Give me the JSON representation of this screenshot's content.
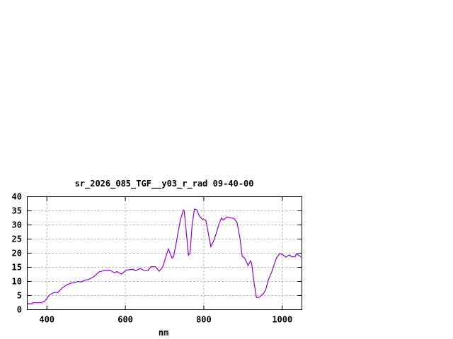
{
  "chart_data": {
    "type": "line",
    "title": "sr_2026_085_TGF__y03_r_rad 09-40-00",
    "xlabel": "nm",
    "ylabel": "",
    "xlim": [
      350,
      1050
    ],
    "ylim": [
      0,
      40
    ],
    "xticks": [
      400,
      600,
      800,
      1000
    ],
    "yticks": [
      0,
      5,
      10,
      15,
      20,
      25,
      30,
      35,
      40
    ],
    "grid": true,
    "line_color": "#9400d3",
    "series": [
      {
        "x": [
          350,
          362,
          365,
          386,
          395,
          401,
          407,
          419,
          428,
          440,
          452,
          461,
          473,
          479,
          488,
          494,
          506,
          521,
          533,
          548,
          560,
          572,
          579,
          590,
          602,
          620,
          626,
          638,
          649,
          658,
          665,
          677,
          686,
          695,
          707,
          710,
          719,
          723,
          731,
          740,
          748,
          750,
          755,
          761,
          765,
          770,
          776,
          782,
          788,
          797,
          805,
          812,
          818,
          827,
          839,
          845,
          849,
          859,
          877,
          885,
          892,
          898,
          904,
          913,
          919,
          922,
          928,
          934,
          940,
          952,
          958,
          964,
          973,
          985,
          994,
          1003,
          1009,
          1018,
          1024,
          1033,
          1036,
          1048
        ],
        "y": [
          2.1,
          2.1,
          2.5,
          2.5,
          3.1,
          4.2,
          5.3,
          6.1,
          6.1,
          7.8,
          8.9,
          9.4,
          9.7,
          10,
          9.8,
          10.3,
          10.7,
          11.8,
          13.4,
          13.9,
          14,
          13.1,
          13.5,
          12.6,
          14,
          14.3,
          13.8,
          14.6,
          13.8,
          13.9,
          15.2,
          15.2,
          13.6,
          15,
          20.4,
          21.5,
          18.3,
          18.8,
          24.6,
          31.7,
          35.3,
          35,
          27.9,
          19.3,
          20,
          29.6,
          35.6,
          35.4,
          33.3,
          31.9,
          31.7,
          26.7,
          22.3,
          25,
          30.4,
          32.5,
          31.7,
          32.8,
          32.3,
          30.8,
          25.4,
          18.9,
          18.3,
          15.6,
          17.3,
          16.4,
          9.6,
          4.4,
          4.3,
          5.7,
          7.1,
          10.4,
          13.3,
          18.3,
          19.9,
          19.3,
          18.6,
          19.4,
          18.7,
          18.8,
          19.8,
          18.7
        ]
      }
    ]
  }
}
